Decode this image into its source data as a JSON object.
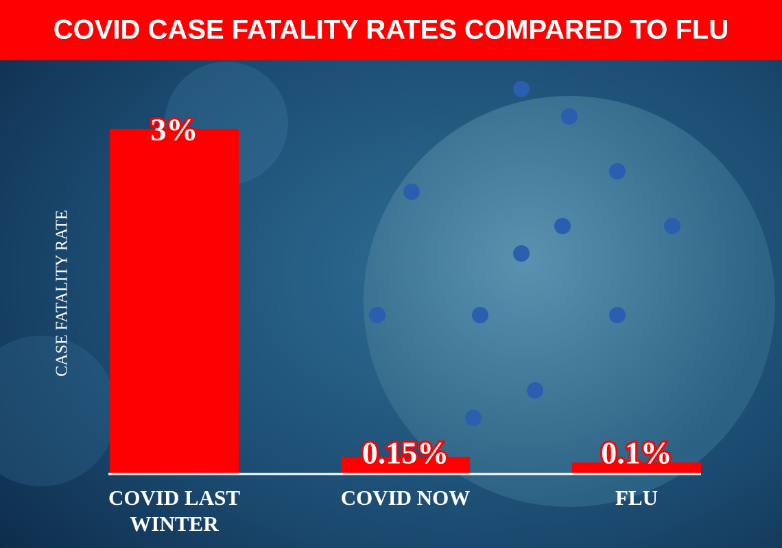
{
  "chart_data": {
    "type": "bar",
    "title": "COVID CASE FATALITY RATES COMPARED TO FLU",
    "y_label": "CASE FATALITY RATE",
    "categories": [
      "COVID LAST WINTER",
      "COVID NOW",
      "FLU"
    ],
    "values": [
      3,
      0.15,
      0.1
    ],
    "value_labels": [
      "3%",
      "0.15%",
      "0.1%"
    ],
    "color": "#ff0000",
    "ylim": [
      0,
      3
    ]
  }
}
